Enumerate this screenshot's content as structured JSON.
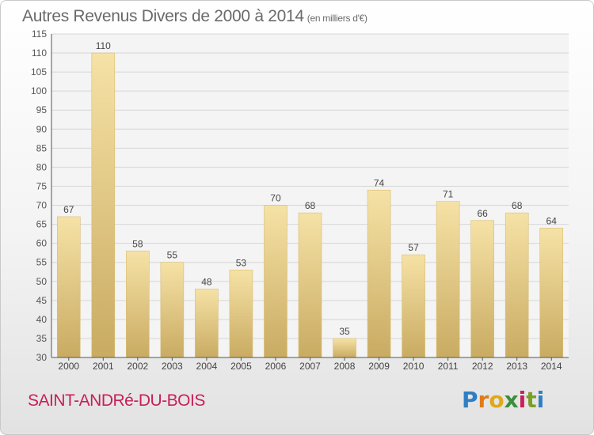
{
  "title": "Autres Revenus Divers de 2000 à 2014",
  "subtitle": "(en milliers d'€)",
  "place_name": "SAINT-ANDRé-DU-BOIS",
  "logo": {
    "text": "Proxiti",
    "letters": [
      {
        "ch": "P",
        "color": "#2d7fc4"
      },
      {
        "ch": "r",
        "color": "#e07b1a"
      },
      {
        "ch": "o",
        "color": "#e0a81a"
      },
      {
        "ch": "x",
        "color": "#3b8f3b"
      },
      {
        "ch": "i",
        "color": "#c81e5a"
      },
      {
        "ch": "t",
        "color": "#7a9e2a"
      },
      {
        "ch": "i",
        "color": "#2d7fc4"
      }
    ]
  },
  "chart_data": {
    "type": "bar",
    "categories": [
      "2000",
      "2001",
      "2002",
      "2003",
      "2004",
      "2005",
      "2006",
      "2007",
      "2008",
      "2009",
      "2010",
      "2011",
      "2012",
      "2013",
      "2014"
    ],
    "values": [
      67,
      110,
      58,
      55,
      48,
      53,
      70,
      68,
      35,
      74,
      57,
      71,
      66,
      68,
      64
    ],
    "title": "Autres Revenus Divers de 2000 à 2014",
    "unit": "(en milliers d'€)",
    "ylim": [
      30,
      115
    ],
    "ytick_step": 5,
    "grid": true,
    "bar_color": "#e3c67e",
    "legend": "none"
  }
}
